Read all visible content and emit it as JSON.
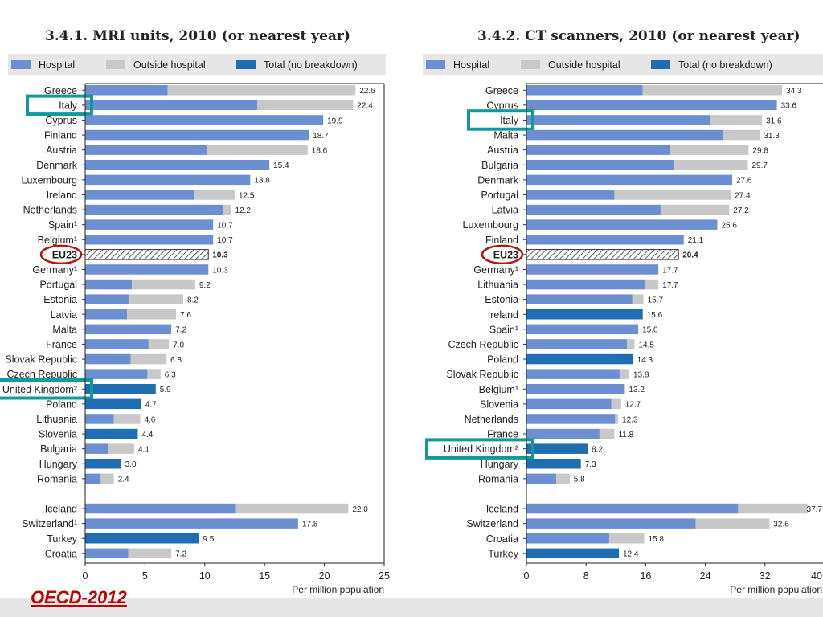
{
  "source_label": "OECD-2012",
  "colors": {
    "hospital": "#6b8fd0",
    "outside": "#c8c8c8",
    "total": "#1f6db3",
    "eu": "hatched",
    "teal_highlight": "#109a98",
    "red_circle": "#b01818"
  },
  "chart_data": [
    {
      "type": "bar",
      "orientation": "horizontal",
      "stacked": true,
      "title": "3.4.1. MRI units, 2010 (or nearest year)",
      "legend": [
        {
          "key": "hospital",
          "label": "Hospital"
        },
        {
          "key": "outside",
          "label": "Outside hospital"
        },
        {
          "key": "total",
          "label": "Total (no breakdown)"
        }
      ],
      "legend_position": "top",
      "xlabel": "Per million population",
      "xlim": [
        0,
        25
      ],
      "xticks": [
        "0",
        "5",
        "10",
        "15",
        "20",
        "25"
      ],
      "bars": [
        {
          "label": "Greece",
          "hospital": 6.9,
          "outside": 15.7,
          "value": "22.6"
        },
        {
          "label": "Italy",
          "hospital": 14.4,
          "outside": 8.0,
          "value": "22.4",
          "highlight": true
        },
        {
          "label": "Cyprus",
          "hospital": 19.9,
          "value": "19.9"
        },
        {
          "label": "Finland",
          "hospital": 18.7,
          "value": "18.7"
        },
        {
          "label": "Austria",
          "hospital": 10.2,
          "outside": 8.4,
          "value": "18.6"
        },
        {
          "label": "Denmark",
          "hospital": 15.4,
          "value": "15.4"
        },
        {
          "label": "Luxembourg",
          "hospital": 13.8,
          "value": "13.8"
        },
        {
          "label": "Ireland",
          "hospital": 9.1,
          "outside": 3.4,
          "value": "12.5"
        },
        {
          "label": "Netherlands",
          "hospital": 11.5,
          "outside": 0.7,
          "value": "12.2"
        },
        {
          "label": "Spain¹",
          "hospital": 10.7,
          "value": "10.7"
        },
        {
          "label": "Belgium¹",
          "hospital": 10.7,
          "value": "10.7"
        },
        {
          "label": "EU23",
          "eu": 10.3,
          "value": "10.3",
          "circled": true
        },
        {
          "label": "Germany¹",
          "hospital": 10.3,
          "value": "10.3"
        },
        {
          "label": "Portugal",
          "hospital": 3.9,
          "outside": 5.3,
          "value": "9.2"
        },
        {
          "label": "Estonia",
          "hospital": 3.7,
          "outside": 4.5,
          "value": "8.2"
        },
        {
          "label": "Latvia",
          "hospital": 3.5,
          "outside": 4.1,
          "value": "7.6"
        },
        {
          "label": "Malta",
          "hospital": 7.2,
          "value": "7.2"
        },
        {
          "label": "France",
          "hospital": 5.3,
          "outside": 1.7,
          "value": "7.0"
        },
        {
          "label": "Slovak Republic",
          "hospital": 3.8,
          "outside": 3.0,
          "value": "6.8"
        },
        {
          "label": "Czech Republic",
          "hospital": 5.2,
          "outside": 1.1,
          "value": "6.3"
        },
        {
          "label": "United Kingdom²",
          "total": 5.9,
          "value": "5.9",
          "highlight": true
        },
        {
          "label": "Poland",
          "total": 4.7,
          "value": "4.7"
        },
        {
          "label": "Lithuania",
          "hospital": 2.4,
          "outside": 2.2,
          "value": "4.6"
        },
        {
          "label": "Slovenia",
          "total": 4.4,
          "value": "4.4"
        },
        {
          "label": "Bulgaria",
          "hospital": 1.9,
          "outside": 2.2,
          "value": "4.1"
        },
        {
          "label": "Hungary",
          "total": 3.0,
          "value": "3.0"
        },
        {
          "label": "Romania",
          "hospital": 1.3,
          "outside": 1.1,
          "value": "2.4"
        },
        {
          "gap": true
        },
        {
          "label": "Iceland",
          "hospital": 12.6,
          "outside": 9.4,
          "value": "22.0"
        },
        {
          "label": "Switzerland¹",
          "hospital": 17.8,
          "value": "17.8"
        },
        {
          "label": "Turkey",
          "total": 9.5,
          "value": "9.5"
        },
        {
          "label": "Croatia",
          "hospital": 3.6,
          "outside": 3.6,
          "value": "7.2"
        }
      ]
    },
    {
      "type": "bar",
      "orientation": "horizontal",
      "stacked": true,
      "title": "3.4.2. CT scanners, 2010 (or nearest year)",
      "legend": [
        {
          "key": "hospital",
          "label": "Hospital"
        },
        {
          "key": "outside",
          "label": "Outside hospital"
        },
        {
          "key": "total",
          "label": "Total (no breakdown)"
        }
      ],
      "legend_position": "top",
      "xlabel": "Per million population",
      "xlim": [
        0,
        40
      ],
      "xticks": [
        "0",
        "8",
        "16",
        "24",
        "32",
        "40"
      ],
      "bars": [
        {
          "label": "Greece",
          "hospital": 15.6,
          "outside": 18.7,
          "value": "34.3"
        },
        {
          "label": "Cyprus",
          "hospital": 33.6,
          "value": "33.6"
        },
        {
          "label": "Italy",
          "hospital": 24.6,
          "outside": 7.0,
          "value": "31.6",
          "highlight": true
        },
        {
          "label": "Malta",
          "hospital": 26.4,
          "outside": 4.9,
          "value": "31.3"
        },
        {
          "label": "Austria",
          "hospital": 19.3,
          "outside": 10.5,
          "value": "29.8"
        },
        {
          "label": "Bulgaria",
          "hospital": 19.8,
          "outside": 9.9,
          "value": "29.7"
        },
        {
          "label": "Denmark",
          "hospital": 27.6,
          "value": "27.6"
        },
        {
          "label": "Portugal",
          "hospital": 11.8,
          "outside": 15.6,
          "value": "27.4"
        },
        {
          "label": "Latvia",
          "hospital": 18.0,
          "outside": 9.2,
          "value": "27.2"
        },
        {
          "label": "Luxembourg",
          "hospital": 25.6,
          "value": "25.6"
        },
        {
          "label": "Finland",
          "hospital": 21.1,
          "value": "21.1"
        },
        {
          "label": "EU23",
          "eu": 20.4,
          "value": "20.4",
          "circled": true
        },
        {
          "label": "Germany¹",
          "hospital": 17.7,
          "value": "17.7"
        },
        {
          "label": "Lithuania",
          "hospital": 15.9,
          "outside": 1.8,
          "value": "17.7"
        },
        {
          "label": "Estonia",
          "hospital": 14.2,
          "outside": 1.5,
          "value": "15.7"
        },
        {
          "label": "Ireland",
          "total": 15.6,
          "value": "15.6"
        },
        {
          "label": "Spain¹",
          "hospital": 15.0,
          "value": "15.0"
        },
        {
          "label": "Czech Republic",
          "hospital": 13.5,
          "outside": 1.0,
          "value": "14.5"
        },
        {
          "label": "Poland",
          "total": 14.3,
          "value": "14.3"
        },
        {
          "label": "Slovak Republic",
          "hospital": 12.5,
          "outside": 1.3,
          "value": "13.8"
        },
        {
          "label": "Belgium¹",
          "hospital": 13.2,
          "value": "13.2"
        },
        {
          "label": "Slovenia",
          "hospital": 11.4,
          "outside": 1.3,
          "value": "12.7"
        },
        {
          "label": "Netherlands",
          "hospital": 11.9,
          "outside": 0.4,
          "value": "12.3"
        },
        {
          "label": "France",
          "hospital": 9.8,
          "outside": 2.0,
          "value": "11.8"
        },
        {
          "label": "United Kingdom²",
          "total": 8.2,
          "value": "8.2",
          "highlight": true
        },
        {
          "label": "Hungary",
          "total": 7.3,
          "value": "7.3"
        },
        {
          "label": "Romania",
          "hospital": 4.0,
          "outside": 1.8,
          "value": "5.8"
        },
        {
          "gap": true
        },
        {
          "label": "Iceland",
          "hospital": 28.4,
          "outside": 9.3,
          "value": "37.7"
        },
        {
          "label": "Switzerland",
          "hospital": 22.7,
          "outside": 9.9,
          "value": "32.6"
        },
        {
          "label": "Croatia",
          "hospital": 11.1,
          "outside": 4.7,
          "value": "15.8"
        },
        {
          "label": "Turkey",
          "total": 12.4,
          "value": "12.4"
        }
      ]
    }
  ]
}
